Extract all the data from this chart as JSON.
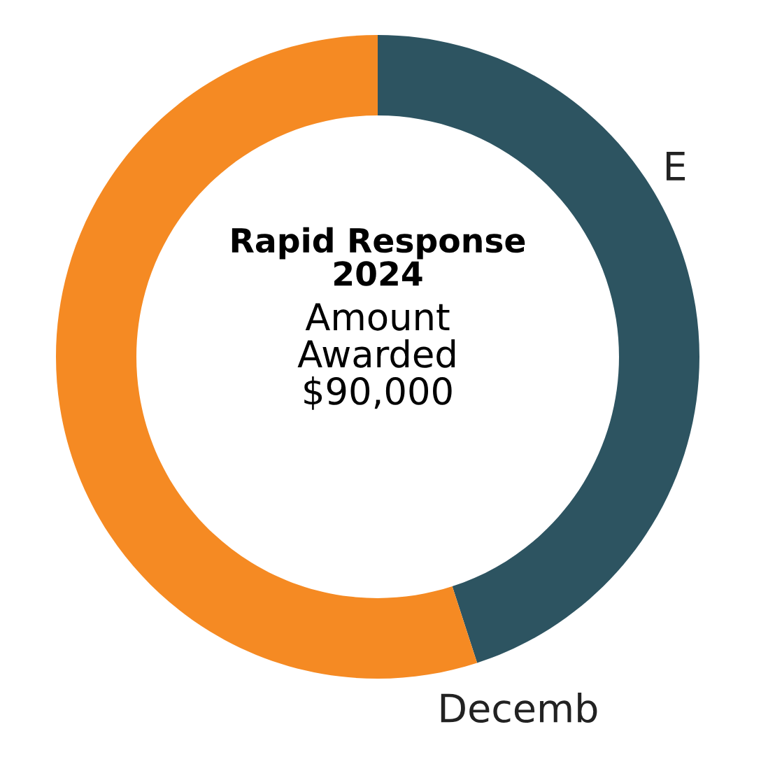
{
  "chart_data": {
    "type": "donut",
    "title": "Rapid Response 2024",
    "subtitle": "Amount Awarded $90,000",
    "categories": [
      "E",
      "Decemb"
    ],
    "values": [
      45,
      55
    ],
    "colors": [
      "#2d5461",
      "#f58a23"
    ]
  }
}
